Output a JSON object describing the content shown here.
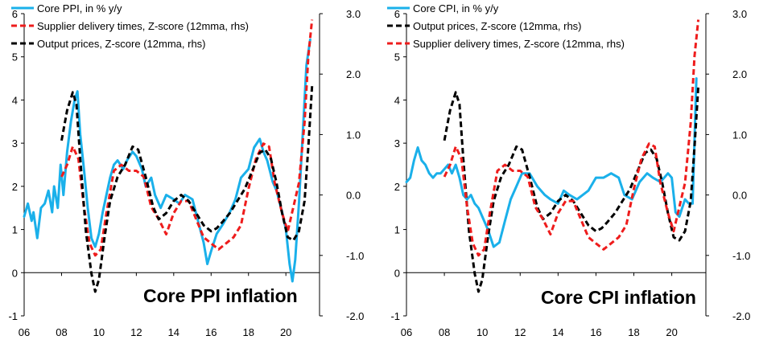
{
  "colors": {
    "core_ppi": "#1ab0ea",
    "core_cpi": "#1ab0ea",
    "supplier": "#ee1c1c",
    "output": "#000000"
  },
  "chart_data": [
    {
      "type": "line",
      "title": "Core PPI inflation",
      "x_ticks": [
        "06",
        "08",
        "10",
        "12",
        "14",
        "16",
        "18",
        "20"
      ],
      "x_tick_years": [
        2006,
        2008,
        2010,
        2012,
        2014,
        2016,
        2018,
        2020
      ],
      "xlim": [
        2006,
        2021.8
      ],
      "ylim_left": [
        -1,
        6
      ],
      "y_ticks_left": [
        "-1",
        "0",
        "1",
        "2",
        "3",
        "4",
        "5",
        "6"
      ],
      "ylim_right": [
        -2,
        3
      ],
      "y_ticks_right": [
        "-2.0",
        "-1.0",
        "0.0",
        "1.0",
        "2.0",
        "3.0"
      ],
      "legend": [
        "Core PPI, in % y/y",
        "Supplier delivery times, Z-score (12mma, rhs)",
        "Output prices, Z-score (12mma, rhs)"
      ],
      "series": [
        {
          "name": "Core PPI, in % y/y",
          "axis": "left",
          "style": "solid",
          "color": "#1ab0ea",
          "x": [
            2006.0,
            2006.2,
            2006.4,
            2006.5,
            2006.7,
            2006.9,
            2007.1,
            2007.3,
            2007.5,
            2007.6,
            2007.8,
            2007.95,
            2008.1,
            2008.3,
            2008.5,
            2008.7,
            2008.85,
            2009.0,
            2009.2,
            2009.4,
            2009.6,
            2009.8,
            2010.0,
            2010.2,
            2010.4,
            2010.6,
            2010.8,
            2011.0,
            2011.3,
            2011.5,
            2011.8,
            2012.0,
            2012.3,
            2012.5,
            2012.8,
            2013.0,
            2013.3,
            2013.6,
            2014.0,
            2014.3,
            2014.6,
            2015.0,
            2015.3,
            2015.6,
            2015.8,
            2016.0,
            2016.3,
            2016.6,
            2017.0,
            2017.3,
            2017.6,
            2018.0,
            2018.3,
            2018.6,
            2018.8,
            2019.0,
            2019.3,
            2019.5,
            2019.8,
            2020.0,
            2020.2,
            2020.35,
            2020.5,
            2020.7,
            2020.9,
            2021.1,
            2021.3
          ],
          "values": [
            1.3,
            1.6,
            1.2,
            1.4,
            0.8,
            1.5,
            1.6,
            1.9,
            1.4,
            2.0,
            1.5,
            2.5,
            1.8,
            2.8,
            3.5,
            4.0,
            4.2,
            3.2,
            2.4,
            1.5,
            0.8,
            0.6,
            0.9,
            1.4,
            1.8,
            2.2,
            2.5,
            2.6,
            2.4,
            2.6,
            2.8,
            2.7,
            2.4,
            2.0,
            2.2,
            1.8,
            1.5,
            1.8,
            1.7,
            1.6,
            1.8,
            1.7,
            1.2,
            0.7,
            0.2,
            0.5,
            0.9,
            1.1,
            1.4,
            1.7,
            2.2,
            2.4,
            2.9,
            3.1,
            2.8,
            2.6,
            2.1,
            1.9,
            1.4,
            1.0,
            0.2,
            -0.2,
            0.3,
            1.6,
            3.2,
            4.8,
            5.4
          ]
        },
        {
          "name": "Supplier delivery times, Z-score (12mma, rhs)",
          "axis": "right",
          "style": "dashed",
          "color": "#ee1c1c",
          "x": [
            2008.0,
            2008.3,
            2008.6,
            2008.9,
            2009.2,
            2009.5,
            2009.8,
            2010.1,
            2010.4,
            2010.8,
            2011.2,
            2011.6,
            2012.0,
            2012.4,
            2012.8,
            2013.2,
            2013.6,
            2014.0,
            2014.4,
            2014.8,
            2015.2,
            2015.6,
            2016.0,
            2016.4,
            2016.8,
            2017.2,
            2017.6,
            2018.0,
            2018.4,
            2018.8,
            2019.1,
            2019.4,
            2019.8,
            2020.1,
            2020.4,
            2020.7,
            2021.0,
            2021.2,
            2021.4
          ],
          "values": [
            0.3,
            0.5,
            0.8,
            0.6,
            -0.2,
            -0.8,
            -1.0,
            -0.9,
            -0.3,
            0.4,
            0.5,
            0.4,
            0.4,
            0.3,
            -0.2,
            -0.4,
            -0.65,
            -0.3,
            -0.1,
            -0.1,
            -0.4,
            -0.7,
            -0.8,
            -0.9,
            -0.8,
            -0.7,
            -0.5,
            0.1,
            0.6,
            0.85,
            0.8,
            0.2,
            -0.3,
            -0.6,
            -0.2,
            0.2,
            1.2,
            2.3,
            2.9
          ]
        },
        {
          "name": "Output prices, Z-score (12mma, rhs)",
          "axis": "right",
          "style": "dashed",
          "color": "#000000",
          "x": [
            2008.0,
            2008.3,
            2008.6,
            2008.8,
            2009.0,
            2009.3,
            2009.6,
            2009.8,
            2010.0,
            2010.3,
            2010.6,
            2011.0,
            2011.4,
            2011.8,
            2012.1,
            2012.5,
            2012.9,
            2013.2,
            2013.6,
            2014.0,
            2014.4,
            2014.8,
            2015.2,
            2015.6,
            2016.0,
            2016.3,
            2016.6,
            2017.0,
            2017.4,
            2017.8,
            2018.2,
            2018.6,
            2018.9,
            2019.2,
            2019.5,
            2019.8,
            2020.1,
            2020.4,
            2020.7,
            2021.0,
            2021.2,
            2021.4
          ],
          "values": [
            0.9,
            1.4,
            1.7,
            1.5,
            0.6,
            -0.6,
            -1.3,
            -1.6,
            -1.4,
            -0.7,
            -0.1,
            0.3,
            0.5,
            0.8,
            0.75,
            0.3,
            -0.2,
            -0.4,
            -0.3,
            -0.1,
            0.0,
            -0.1,
            -0.3,
            -0.5,
            -0.6,
            -0.55,
            -0.45,
            -0.3,
            -0.1,
            0.1,
            0.4,
            0.7,
            0.75,
            0.6,
            0.2,
            -0.3,
            -0.7,
            -0.75,
            -0.6,
            -0.1,
            0.8,
            1.8
          ]
        }
      ]
    },
    {
      "type": "line",
      "title": "Core CPI inflation",
      "x_ticks": [
        "06",
        "08",
        "10",
        "12",
        "14",
        "16",
        "18",
        "20"
      ],
      "x_tick_years": [
        2006,
        2008,
        2010,
        2012,
        2014,
        2016,
        2018,
        2020
      ],
      "xlim": [
        2006,
        2021.8
      ],
      "ylim_left": [
        -1,
        6
      ],
      "y_ticks_left": [
        "-1",
        "0",
        "1",
        "2",
        "3",
        "4",
        "5",
        "6"
      ],
      "ylim_right": [
        -2,
        3
      ],
      "y_ticks_right": [
        "-2.0",
        "-1.0",
        "0.0",
        "1.0",
        "2.0",
        "3.0"
      ],
      "legend": [
        "Core CPI, in % y/y",
        "Output prices, Z-score (12mma, rhs)",
        "Supplier delivery times, Z-score (12mma, rhs)"
      ],
      "series": [
        {
          "name": "Core CPI, in % y/y",
          "axis": "left",
          "style": "solid",
          "color": "#1ab0ea",
          "x": [
            2006.0,
            2006.2,
            2006.4,
            2006.6,
            2006.8,
            2007.0,
            2007.2,
            2007.4,
            2007.6,
            2007.8,
            2008.0,
            2008.2,
            2008.4,
            2008.6,
            2008.8,
            2009.0,
            2009.2,
            2009.4,
            2009.6,
            2009.8,
            2010.0,
            2010.3,
            2010.6,
            2010.9,
            2011.2,
            2011.5,
            2011.8,
            2012.1,
            2012.5,
            2012.9,
            2013.3,
            2013.6,
            2014.0,
            2014.3,
            2014.6,
            2015.0,
            2015.3,
            2015.6,
            2016.0,
            2016.4,
            2016.8,
            2017.2,
            2017.5,
            2017.9,
            2018.3,
            2018.7,
            2019.0,
            2019.4,
            2019.8,
            2020.0,
            2020.2,
            2020.4,
            2020.7,
            2020.9,
            2021.1,
            2021.3
          ],
          "values": [
            2.1,
            2.2,
            2.6,
            2.9,
            2.6,
            2.5,
            2.3,
            2.2,
            2.3,
            2.3,
            2.4,
            2.5,
            2.3,
            2.5,
            2.2,
            1.8,
            1.7,
            1.8,
            1.6,
            1.5,
            1.3,
            1.0,
            0.6,
            0.7,
            1.2,
            1.7,
            2.0,
            2.3,
            2.3,
            2.0,
            1.8,
            1.7,
            1.6,
            1.9,
            1.8,
            1.7,
            1.8,
            1.9,
            2.2,
            2.2,
            2.3,
            2.2,
            1.8,
            1.7,
            2.1,
            2.3,
            2.2,
            2.1,
            2.3,
            2.2,
            1.4,
            1.3,
            1.7,
            1.6,
            1.6,
            4.5
          ]
        },
        {
          "name": "Output prices, Z-score (12mma, rhs)",
          "axis": "right",
          "style": "dashed",
          "color": "#000000",
          "x": [
            2008.0,
            2008.3,
            2008.6,
            2008.8,
            2009.0,
            2009.3,
            2009.6,
            2009.8,
            2010.0,
            2010.3,
            2010.6,
            2011.0,
            2011.4,
            2011.8,
            2012.1,
            2012.5,
            2012.9,
            2013.2,
            2013.6,
            2014.0,
            2014.4,
            2014.8,
            2015.2,
            2015.6,
            2016.0,
            2016.3,
            2016.6,
            2017.0,
            2017.4,
            2017.8,
            2018.2,
            2018.6,
            2018.9,
            2019.2,
            2019.5,
            2019.8,
            2020.1,
            2020.4,
            2020.7,
            2021.0,
            2021.2,
            2021.4
          ],
          "values": [
            0.9,
            1.4,
            1.7,
            1.5,
            0.6,
            -0.6,
            -1.3,
            -1.6,
            -1.4,
            -0.7,
            -0.1,
            0.3,
            0.5,
            0.8,
            0.75,
            0.3,
            -0.2,
            -0.4,
            -0.3,
            -0.1,
            0.0,
            -0.1,
            -0.3,
            -0.5,
            -0.6,
            -0.55,
            -0.45,
            -0.3,
            -0.1,
            0.1,
            0.4,
            0.7,
            0.75,
            0.6,
            0.2,
            -0.3,
            -0.7,
            -0.75,
            -0.6,
            -0.1,
            0.8,
            1.8
          ]
        },
        {
          "name": "Supplier delivery times, Z-score (12mma, rhs)",
          "axis": "right",
          "style": "dashed",
          "color": "#ee1c1c",
          "x": [
            2008.0,
            2008.3,
            2008.6,
            2008.9,
            2009.2,
            2009.5,
            2009.8,
            2010.1,
            2010.4,
            2010.8,
            2011.2,
            2011.6,
            2012.0,
            2012.4,
            2012.8,
            2013.2,
            2013.6,
            2014.0,
            2014.4,
            2014.8,
            2015.2,
            2015.6,
            2016.0,
            2016.4,
            2016.8,
            2017.2,
            2017.6,
            2018.0,
            2018.4,
            2018.8,
            2019.1,
            2019.4,
            2019.8,
            2020.1,
            2020.4,
            2020.7,
            2021.0,
            2021.2,
            2021.4
          ],
          "values": [
            0.3,
            0.5,
            0.8,
            0.6,
            -0.2,
            -0.8,
            -1.0,
            -0.9,
            -0.3,
            0.4,
            0.5,
            0.4,
            0.4,
            0.3,
            -0.2,
            -0.4,
            -0.65,
            -0.3,
            -0.1,
            -0.1,
            -0.4,
            -0.7,
            -0.8,
            -0.9,
            -0.8,
            -0.7,
            -0.5,
            0.1,
            0.6,
            0.85,
            0.8,
            0.2,
            -0.3,
            -0.6,
            -0.2,
            0.2,
            1.2,
            2.3,
            2.9
          ]
        }
      ]
    }
  ]
}
